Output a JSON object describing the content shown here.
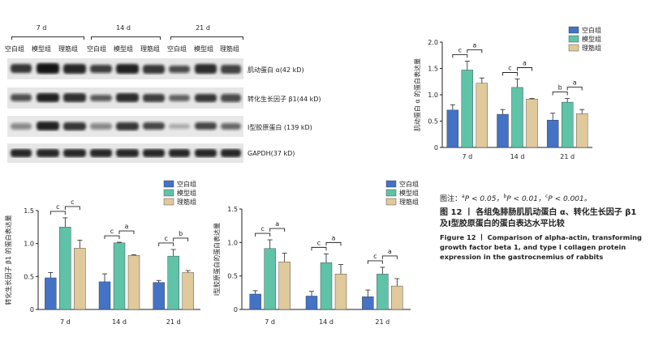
{
  "blot": {
    "groups": [
      "7 d",
      "14 d",
      "21 d"
    ],
    "lanes": [
      "空白组",
      "模型组",
      "理筋组",
      "空白组",
      "模型组",
      "理筋组",
      "空白组",
      "模型组",
      "理筋组"
    ],
    "rows": [
      {
        "label": "肌动蛋白 α(42 kD)"
      },
      {
        "label": "转化生长因子 β1(44 kD)"
      },
      {
        "label": "Ⅰ型胶原蛋白 (139 kD)"
      },
      {
        "label": "GAPDH(37 kD)"
      }
    ]
  },
  "legend": [
    "空白组",
    "模型组",
    "理筋组"
  ],
  "colors": {
    "blank": "#4472c4",
    "model": "#5fc3a8",
    "treat": "#e0c99a"
  },
  "chart_data": [
    {
      "type": "bar",
      "ylabel": "肌动蛋白 α 的蛋白表达量",
      "categories": [
        "7 d",
        "14 d",
        "21 d"
      ],
      "ylim": [
        0,
        2.0
      ],
      "yticks": [
        "0",
        "0.5",
        "1.0",
        "1.5",
        "2.0"
      ],
      "series": [
        {
          "name": "空白组",
          "values": [
            0.71,
            0.63,
            0.52
          ],
          "errors": [
            0.1,
            0.09,
            0.13
          ]
        },
        {
          "name": "模型组",
          "values": [
            1.47,
            1.14,
            0.86
          ],
          "errors": [
            0.17,
            0.16,
            0.07
          ]
        },
        {
          "name": "理筋组",
          "values": [
            1.22,
            0.92,
            0.64
          ],
          "errors": [
            0.1,
            0.01,
            0.08
          ]
        }
      ],
      "annotations": [
        [
          "c",
          "a"
        ],
        [
          "c",
          "a"
        ],
        [
          "b",
          "a"
        ]
      ]
    },
    {
      "type": "bar",
      "ylabel": "转化生长因子 β1 的蛋白表达量",
      "categories": [
        "7 d",
        "14 d",
        "21 d"
      ],
      "ylim": [
        0,
        1.5
      ],
      "yticks": [
        "0",
        "0.5",
        "1.0",
        "1.5"
      ],
      "series": [
        {
          "name": "空白组",
          "values": [
            0.48,
            0.42,
            0.41
          ],
          "errors": [
            0.08,
            0.12,
            0.03
          ]
        },
        {
          "name": "模型组",
          "values": [
            1.25,
            1.01,
            0.81
          ],
          "errors": [
            0.14,
            0.01,
            0.1
          ]
        },
        {
          "name": "理筋组",
          "values": [
            0.93,
            0.82,
            0.56
          ],
          "errors": [
            0.12,
            0.01,
            0.03
          ]
        }
      ],
      "annotations": [
        [
          "c",
          "c"
        ],
        [
          "c",
          "a"
        ],
        [
          "c",
          "b"
        ]
      ]
    },
    {
      "type": "bar",
      "ylabel": "Ⅰ型胶原蛋白的蛋白表达量",
      "categories": [
        "7 d",
        "14 d",
        "21 d"
      ],
      "ylim": [
        0,
        1.5
      ],
      "yticks": [
        "0",
        "0.5",
        "1.0",
        "1.5"
      ],
      "series": [
        {
          "name": "空白组",
          "values": [
            0.23,
            0.2,
            0.19
          ],
          "errors": [
            0.05,
            0.07,
            0.1
          ]
        },
        {
          "name": "模型组",
          "values": [
            0.91,
            0.7,
            0.53
          ],
          "errors": [
            0.13,
            0.13,
            0.1
          ]
        },
        {
          "name": "理筋组",
          "values": [
            0.71,
            0.53,
            0.35
          ],
          "errors": [
            0.13,
            0.14,
            0.11
          ]
        }
      ],
      "annotations": [
        [
          "c",
          "a"
        ],
        [
          "c",
          "a"
        ],
        [
          "c",
          "a"
        ]
      ]
    }
  ],
  "caption": {
    "note_prefix": "图注：",
    "note_a": "P < 0.05，",
    "note_b": "P < 0.01，",
    "note_c": "P < 0.001。",
    "sup_a": "a",
    "sup_b": "b",
    "sup_c": "c",
    "fig_zh": "图 12 丨 各组兔腓肠肌肌动蛋白 α、转化生长因子 β1 及Ⅰ型胶原蛋白的蛋白表达水平比较",
    "fig_en": "Figure 12 丨 Comparison of alpha-actin, transforming growth factor beta 1, and type I collagen protein expression in the gastrocnemius of rabbits"
  }
}
